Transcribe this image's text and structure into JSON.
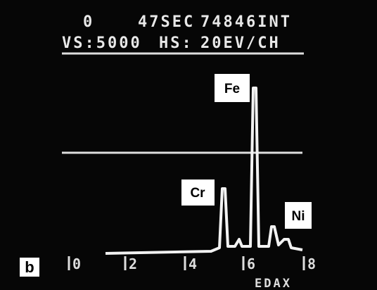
{
  "header": {
    "line1": [
      "0",
      "47SEC",
      "74846INT"
    ],
    "line2": [
      "VS:5000",
      "HS:",
      "20EV/CH"
    ]
  },
  "peaks": [
    "Fe",
    "Cr",
    "Ni"
  ],
  "axis": {
    "ticks": [
      "0",
      "2",
      "4",
      "6",
      "8"
    ],
    "brand": "EDAX"
  },
  "panel_label": "b"
}
